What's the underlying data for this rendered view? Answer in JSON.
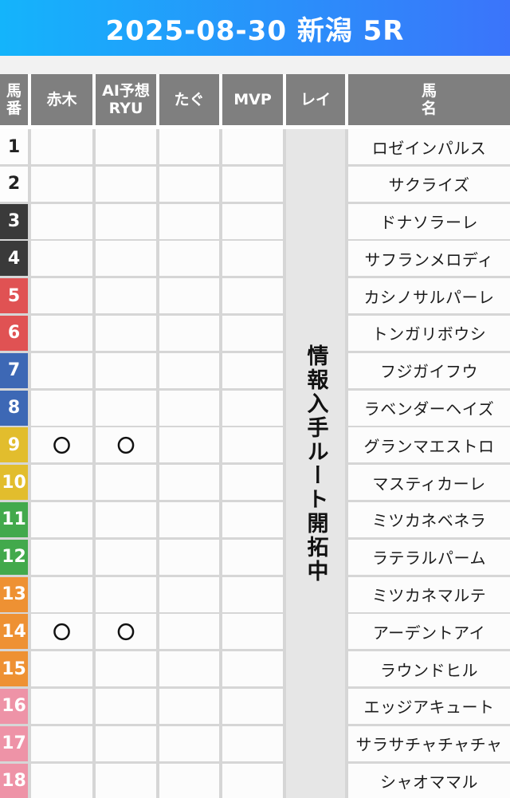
{
  "header": {
    "title": "2025-08-30 新潟 5R"
  },
  "colors": {
    "title_gradient_left": "#14b4fb",
    "title_gradient_right": "#3b74fa",
    "table_header_bg": "#7f7f7f",
    "grid_line": "#d6d6d6",
    "rei_column_bg": "#e6e6e6",
    "brackets": {
      "white": {
        "bg": "#fdfdfd",
        "text": "#222222"
      },
      "black": {
        "bg": "#3a3a3a",
        "text": "#ffffff"
      },
      "red": {
        "bg": "#e05253",
        "text": "#ffffff"
      },
      "blue": {
        "bg": "#3d68b5",
        "text": "#ffffff"
      },
      "yellow": {
        "bg": "#e2bd2d",
        "text": "#ffffff"
      },
      "green": {
        "bg": "#42a94c",
        "text": "#ffffff"
      },
      "orange": {
        "bg": "#ee9133",
        "text": "#ffffff"
      },
      "pink": {
        "bg": "#ee93a7",
        "text": "#ffffff"
      }
    }
  },
  "table": {
    "columns": [
      {
        "key": "num",
        "label": "馬\n番"
      },
      {
        "key": "akagi",
        "label": "赤木"
      },
      {
        "key": "ai_ryu",
        "label": "AI予想\nRYU"
      },
      {
        "key": "tagu",
        "label": "たぐ"
      },
      {
        "key": "mvp",
        "label": "MVP"
      },
      {
        "key": "rei",
        "label": "レイ"
      },
      {
        "key": "name",
        "label": "馬\n名"
      }
    ],
    "rows": [
      {
        "num": "1",
        "bracket": "white",
        "marks": [
          "",
          "",
          "",
          "",
          ""
        ],
        "name": "ロゼインパルス"
      },
      {
        "num": "2",
        "bracket": "white",
        "marks": [
          "",
          "",
          "",
          "",
          ""
        ],
        "name": "サクライズ"
      },
      {
        "num": "3",
        "bracket": "black",
        "marks": [
          "",
          "",
          "",
          "",
          ""
        ],
        "name": "ドナソラーレ"
      },
      {
        "num": "4",
        "bracket": "black",
        "marks": [
          "",
          "",
          "",
          "",
          ""
        ],
        "name": "サフランメロディ"
      },
      {
        "num": "5",
        "bracket": "red",
        "marks": [
          "",
          "",
          "",
          "",
          ""
        ],
        "name": "カシノサルパーレ"
      },
      {
        "num": "6",
        "bracket": "red",
        "marks": [
          "",
          "",
          "",
          "",
          ""
        ],
        "name": "トンガリボウシ"
      },
      {
        "num": "7",
        "bracket": "blue",
        "marks": [
          "",
          "",
          "",
          "",
          ""
        ],
        "name": "フジガイフウ"
      },
      {
        "num": "8",
        "bracket": "blue",
        "marks": [
          "",
          "",
          "",
          "",
          ""
        ],
        "name": "ラベンダーヘイズ"
      },
      {
        "num": "9",
        "bracket": "yellow",
        "marks": [
          "〇",
          "〇",
          "",
          "",
          ""
        ],
        "name": "グランマエストロ"
      },
      {
        "num": "10",
        "bracket": "yellow",
        "marks": [
          "",
          "",
          "",
          "",
          ""
        ],
        "name": "マスティカーレ"
      },
      {
        "num": "11",
        "bracket": "green",
        "marks": [
          "",
          "",
          "",
          "",
          ""
        ],
        "name": "ミツカネベネラ"
      },
      {
        "num": "12",
        "bracket": "green",
        "marks": [
          "",
          "",
          "",
          "",
          ""
        ],
        "name": "ラテラルパーム"
      },
      {
        "num": "13",
        "bracket": "orange",
        "marks": [
          "",
          "",
          "",
          "",
          ""
        ],
        "name": "ミツカネマルテ"
      },
      {
        "num": "14",
        "bracket": "orange",
        "marks": [
          "〇",
          "〇",
          "",
          "",
          ""
        ],
        "name": "アーデントアイ"
      },
      {
        "num": "15",
        "bracket": "orange",
        "marks": [
          "",
          "",
          "",
          "",
          ""
        ],
        "name": "ラウンドヒル"
      },
      {
        "num": "16",
        "bracket": "pink",
        "marks": [
          "",
          "",
          "",
          "",
          ""
        ],
        "name": "エッジアキュート"
      },
      {
        "num": "17",
        "bracket": "pink",
        "marks": [
          "",
          "",
          "",
          "",
          ""
        ],
        "name": "サラサチャチャチャ"
      },
      {
        "num": "18",
        "bracket": "pink",
        "marks": [
          "",
          "",
          "",
          "",
          ""
        ],
        "name": "シャオママル"
      }
    ]
  },
  "overlay": {
    "notice": "情報入手ルート開拓中"
  }
}
